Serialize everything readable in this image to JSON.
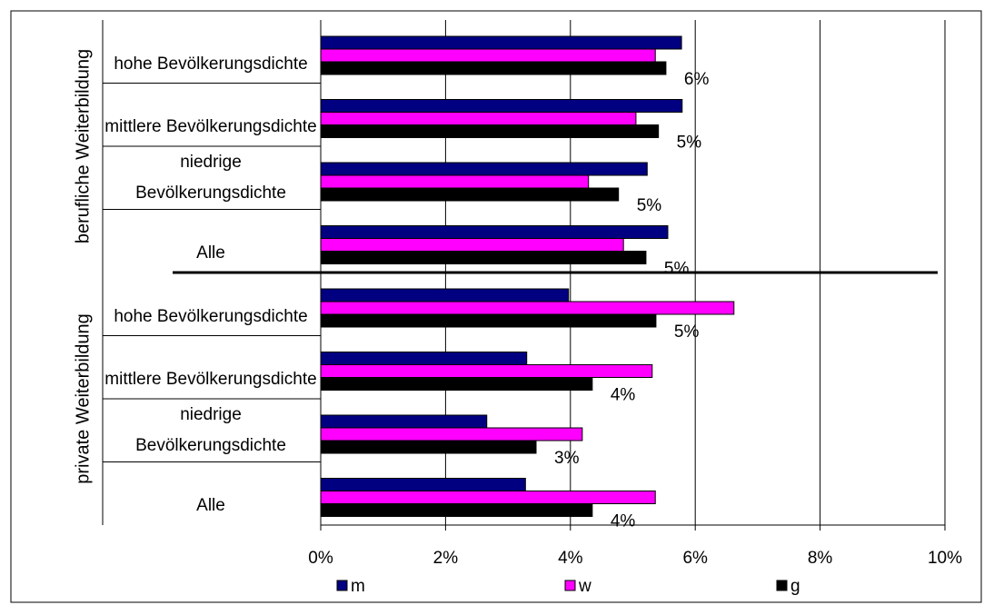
{
  "chart_data": {
    "type": "bar",
    "orientation": "horizontal",
    "groups": [
      {
        "name": "berufliche Weiterbildung",
        "categories": [
          "hohe Bevölkerungsdichte",
          "mittlere Bevölkerungsdichte",
          "niedrige Bevölkerungsdichte",
          "Alle"
        ]
      },
      {
        "name": "private Weiterbildung",
        "categories": [
          "hohe Bevölkerungsdichte",
          "mittlere Bevölkerungsdichte",
          "niedrige Bevölkerungsdichte",
          "Alle"
        ]
      }
    ],
    "series": [
      {
        "name": "m",
        "color": "#000080",
        "values": [
          5.78,
          5.79,
          5.23,
          5.56,
          3.97,
          3.3,
          2.66,
          3.28
        ]
      },
      {
        "name": "w",
        "color": "#ff00ff",
        "values": [
          5.36,
          5.05,
          4.29,
          4.85,
          6.62,
          5.31,
          4.19,
          5.36
        ]
      },
      {
        "name": "g",
        "color": "#000000",
        "values": [
          5.53,
          5.41,
          4.77,
          5.21,
          5.37,
          4.35,
          3.45,
          4.35
        ],
        "value_labels": [
          "6%",
          "5%",
          "5%",
          "5%",
          "5%",
          "4%",
          "3%",
          "4%"
        ]
      }
    ],
    "xlim": [
      0,
      10
    ],
    "xticks": [
      {
        "value": 0,
        "label": "0%"
      },
      {
        "value": 2,
        "label": "2%"
      },
      {
        "value": 4,
        "label": "4%"
      },
      {
        "value": 6,
        "label": "6%"
      },
      {
        "value": 8,
        "label": "8%"
      },
      {
        "value": 10,
        "label": "10%"
      }
    ],
    "grid": true,
    "legend": "bottom"
  }
}
